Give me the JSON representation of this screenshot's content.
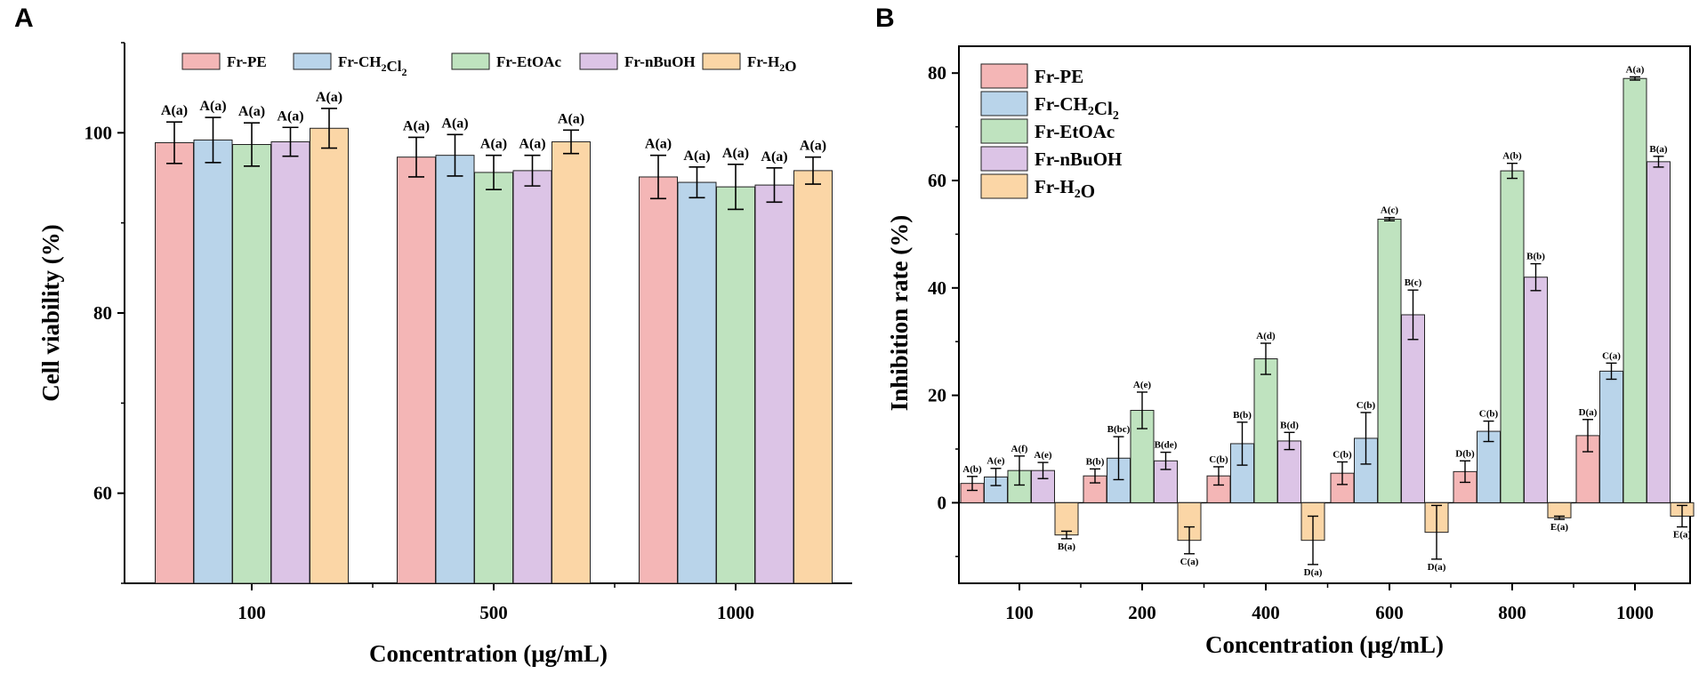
{
  "panels": {
    "a_label": "A",
    "b_label": "B"
  },
  "colors": {
    "series": [
      "#f4b6b6",
      "#b9d4ea",
      "#bfe3bf",
      "#dcc4e6",
      "#fbd6a6"
    ],
    "edge": "#222222"
  },
  "chart_data": [
    {
      "id": "A",
      "type": "bar",
      "title": "",
      "xlabel": "Concentration (μg/mL)",
      "ylabel": "Cell viability (%)",
      "ylim": [
        50,
        110
      ],
      "yticks": [
        60,
        80,
        100
      ],
      "grid": false,
      "legend_position": "top",
      "categories": [
        "100",
        "500",
        "1000"
      ],
      "series": [
        {
          "name": "Fr-PE",
          "legend_base": "Fr-PE",
          "legend_sub": "",
          "legend_tail": "",
          "values": [
            98.9,
            97.3,
            95.1
          ],
          "errors": [
            2.3,
            2.2,
            2.4
          ],
          "labels": [
            "A(a)",
            "A(a)",
            "A(a)"
          ]
        },
        {
          "name": "Fr-CH2Cl2",
          "legend_base": "Fr-CH",
          "legend_sub": "2",
          "legend_mid": "Cl",
          "legend_sub2": "2",
          "values": [
            99.2,
            97.5,
            94.5
          ],
          "errors": [
            2.5,
            2.3,
            1.7
          ],
          "labels": [
            "A(a)",
            "A(a)",
            "A(a)"
          ]
        },
        {
          "name": "Fr-EtOAc",
          "legend_base": "Fr-EtOAc",
          "legend_sub": "",
          "legend_tail": "",
          "values": [
            98.7,
            95.6,
            94.0
          ],
          "errors": [
            2.4,
            1.9,
            2.5
          ],
          "labels": [
            "A(a)",
            "A(a)",
            "A(a)"
          ]
        },
        {
          "name": "Fr-nBuOH",
          "legend_base": "Fr-nBuOH",
          "legend_sub": "",
          "legend_tail": "",
          "values": [
            99.0,
            95.8,
            94.2
          ],
          "errors": [
            1.6,
            1.7,
            1.9
          ],
          "labels": [
            "A(a)",
            "A(a)",
            "A(a)"
          ]
        },
        {
          "name": "Fr-H2O",
          "legend_base": "Fr-H",
          "legend_sub": "2",
          "legend_tail": "O",
          "values": [
            100.5,
            99.0,
            95.8
          ],
          "errors": [
            2.2,
            1.3,
            1.5
          ],
          "labels": [
            "A(a)",
            "A(a)",
            "A(a)"
          ]
        }
      ]
    },
    {
      "id": "B",
      "type": "bar",
      "title": "",
      "xlabel": "Concentration (μg/mL)",
      "ylabel": "Inhibition rate (%)",
      "ylim": [
        -15,
        85
      ],
      "yticks": [
        0,
        20,
        40,
        60,
        80
      ],
      "grid": false,
      "legend_position": "top-left",
      "categories": [
        "100",
        "200",
        "400",
        "600",
        "800",
        "1000"
      ],
      "series": [
        {
          "name": "Fr-PE",
          "legend_base": "Fr-PE",
          "legend_sub": "",
          "legend_tail": "",
          "values": [
            3.6,
            5.0,
            5.0,
            5.5,
            5.8,
            12.5
          ],
          "errors": [
            1.3,
            1.3,
            1.7,
            2.1,
            2.0,
            3.0
          ],
          "labels": [
            "A(b)",
            "B(b)",
            "C(b)",
            "C(b)",
            "D(b)",
            "D(a)"
          ]
        },
        {
          "name": "Fr-CH2Cl2",
          "legend_base": "Fr-CH",
          "legend_sub": "2",
          "legend_mid": "Cl",
          "legend_sub2": "2",
          "values": [
            4.8,
            8.3,
            11.0,
            12.0,
            13.3,
            24.5
          ],
          "errors": [
            1.6,
            4.0,
            4.0,
            4.8,
            1.9,
            1.5
          ],
          "labels": [
            "A(e)",
            "B(bc)",
            "B(b)",
            "C(b)",
            "C(b)",
            "C(a)"
          ]
        },
        {
          "name": "Fr-EtOAc",
          "legend_base": "Fr-EtOAc",
          "legend_sub": "",
          "legend_tail": "",
          "values": [
            6.0,
            17.2,
            26.8,
            52.8,
            61.8,
            79.0
          ],
          "errors": [
            2.7,
            3.4,
            2.9,
            0.3,
            1.4,
            0.3
          ],
          "labels": [
            "A(f)",
            "A(e)",
            "A(d)",
            "A(c)",
            "A(b)",
            "A(a)"
          ]
        },
        {
          "name": "Fr-nBuOH",
          "legend_base": "Fr-nBuOH",
          "legend_sub": "",
          "legend_tail": "",
          "values": [
            6.0,
            7.8,
            11.5,
            35.0,
            42.0,
            63.5
          ],
          "errors": [
            1.5,
            1.6,
            1.6,
            4.6,
            2.5,
            1.0
          ],
          "labels": [
            "A(e)",
            "B(de)",
            "B(d)",
            "B(c)",
            "B(b)",
            "B(a)"
          ]
        },
        {
          "name": "Fr-H2O",
          "legend_base": "Fr-H",
          "legend_sub": "2",
          "legend_tail": "O",
          "values": [
            -6.0,
            -7.0,
            -7.0,
            -5.5,
            -2.8,
            -2.5
          ],
          "errors": [
            0.7,
            2.5,
            4.5,
            5.0,
            0.3,
            2.0
          ],
          "labels": [
            "B(a)",
            "C(a)",
            "D(a)",
            "D(a)",
            "E(a)",
            "E(a)"
          ]
        }
      ]
    }
  ]
}
